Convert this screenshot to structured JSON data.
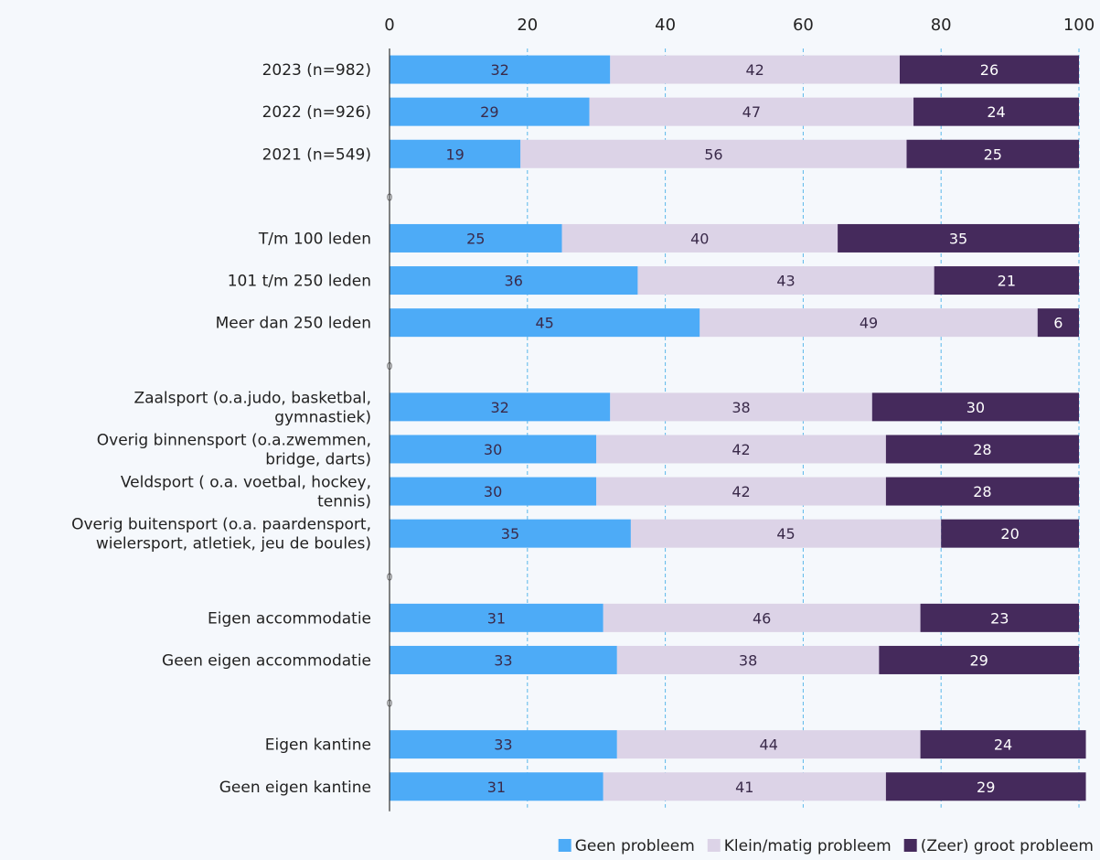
{
  "chart_data": {
    "type": "bar",
    "orientation": "horizontal",
    "stacked": true,
    "title": "",
    "xlabel": "",
    "ylabel": "",
    "xlim": [
      0,
      100
    ],
    "x_ticks": [
      0,
      20,
      40,
      60,
      80,
      100
    ],
    "grid": "vertical dashed",
    "legend_position": "bottom-right",
    "categories": [
      "2023 (n=982)",
      "2022 (n=926)",
      "2021 (n=549)",
      "0",
      "T/m 100 leden",
      "101 t/m 250 leden",
      "Meer dan 250 leden",
      "0",
      "Zaalsport (o.a.judo, basketbal, gymnastiek)",
      "Overig binnensport (o.a.zwemmen, bridge, darts)",
      "Veldsport ( o.a. voetbal, hockey, tennis)",
      "Overig buitensport (o.a. paardensport, wielersport, atletiek, jeu de boules)",
      "0",
      "Eigen accommodatie",
      "Geen eigen accommodatie",
      "0",
      "Eigen kantine",
      "Geen eigen kantine"
    ],
    "series": [
      {
        "name": "Geen probleem",
        "color": "#4dabf7",
        "values": [
          32,
          29,
          19,
          0,
          25,
          36,
          45,
          0,
          32,
          30,
          30,
          35,
          0,
          31,
          33,
          0,
          33,
          31
        ]
      },
      {
        "name": "Klein/matig probleem",
        "color": "#dcd3e7",
        "values": [
          42,
          47,
          56,
          0,
          40,
          43,
          49,
          0,
          38,
          42,
          42,
          45,
          0,
          46,
          38,
          0,
          44,
          41
        ]
      },
      {
        "name": "(Zeer) groot probleem",
        "color": "#452a5c",
        "values": [
          26,
          24,
          25,
          0,
          35,
          21,
          6,
          0,
          30,
          28,
          28,
          20,
          0,
          23,
          29,
          0,
          24,
          29
        ]
      }
    ]
  }
}
